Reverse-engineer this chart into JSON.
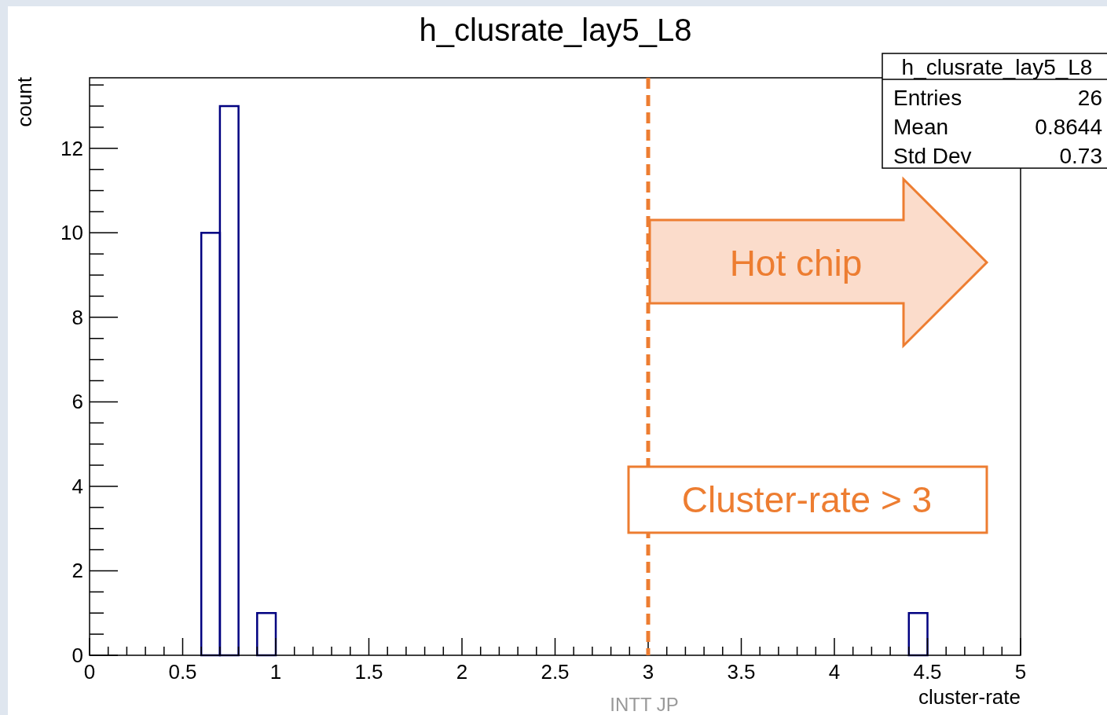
{
  "chart_data": {
    "type": "histogram",
    "title": "h_clusrate_lay5_L8",
    "xlabel": "cluster-rate",
    "ylabel": "count",
    "bins": [
      0,
      0.1,
      0.2,
      0.3,
      0.4,
      0.5,
      0.6,
      0.7,
      0.8,
      0.9,
      1,
      1.1,
      1.2,
      1.3,
      1.4,
      1.5,
      1.6,
      1.7,
      1.8,
      1.9,
      2,
      2.1,
      2.2,
      2.3,
      2.4,
      2.5,
      2.6,
      2.7,
      2.8,
      2.9,
      3,
      3.1,
      3.2,
      3.3,
      3.4,
      3.5,
      3.6,
      3.7,
      3.8,
      3.9,
      4,
      4.1,
      4.2,
      4.3,
      4.4,
      4.5,
      4.6,
      4.7,
      4.8,
      4.9,
      5
    ],
    "values": [
      0,
      0,
      0,
      0,
      0,
      0,
      10,
      13,
      0,
      1,
      0,
      0,
      0,
      0,
      0,
      0,
      0,
      0,
      0,
      0,
      0,
      0,
      0,
      0,
      0,
      0,
      0,
      0,
      0,
      0,
      0,
      0,
      0,
      0,
      0,
      0,
      0,
      0,
      0,
      0,
      0,
      0,
      0,
      0,
      1,
      0,
      0,
      0,
      0,
      0
    ],
    "color": "#000080",
    "xlim": [
      0,
      5
    ],
    "ylim": [
      0,
      13.67
    ],
    "xticks": [
      0,
      0.5,
      1,
      1.5,
      2,
      2.5,
      3,
      3.5,
      4,
      4.5,
      5
    ],
    "yticks": [
      0,
      2,
      4,
      6,
      8,
      10,
      12
    ],
    "ref_lines": [
      {
        "axis": "x",
        "value": 3,
        "color": "#ed7d31",
        "line_style": "dashed"
      }
    ],
    "annotations": [
      "h_clusrate_lay5_L8",
      "Entries",
      "26",
      "Mean",
      "0.8644",
      "Std Dev",
      "0.73",
      "Hot chip",
      "Cluster-rate > 3",
      "INTT JP"
    ]
  }
}
